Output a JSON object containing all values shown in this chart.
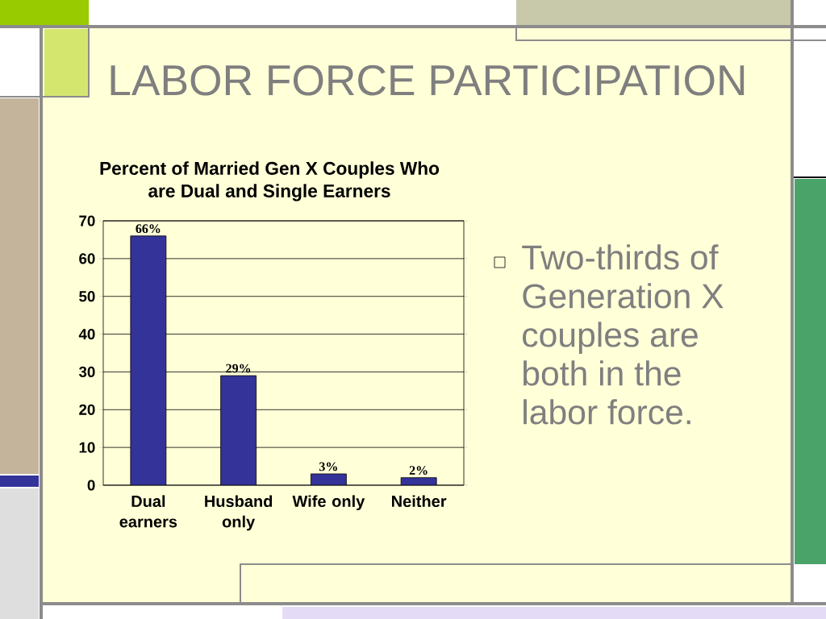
{
  "chart_data": {
    "type": "bar",
    "title": "LABOR FORCE PARTICIPATION",
    "subtitle": "Percent of Married Gen X Couples Who are Dual and Single Earners",
    "annotations": [
      "Two-thirds of Generation X couples are both in the labor force."
    ],
    "categories": [
      "Dual earners",
      "Husband only",
      "Wife only",
      "Neither"
    ],
    "values": [
      66,
      29,
      3,
      2
    ],
    "value_labels": [
      "66%",
      "29%",
      "3%",
      "2%"
    ],
    "color": "#333399",
    "ylim": [
      0,
      70
    ],
    "yticks": [
      0,
      10,
      20,
      30,
      40,
      50,
      60,
      70
    ],
    "grid": "y"
  }
}
